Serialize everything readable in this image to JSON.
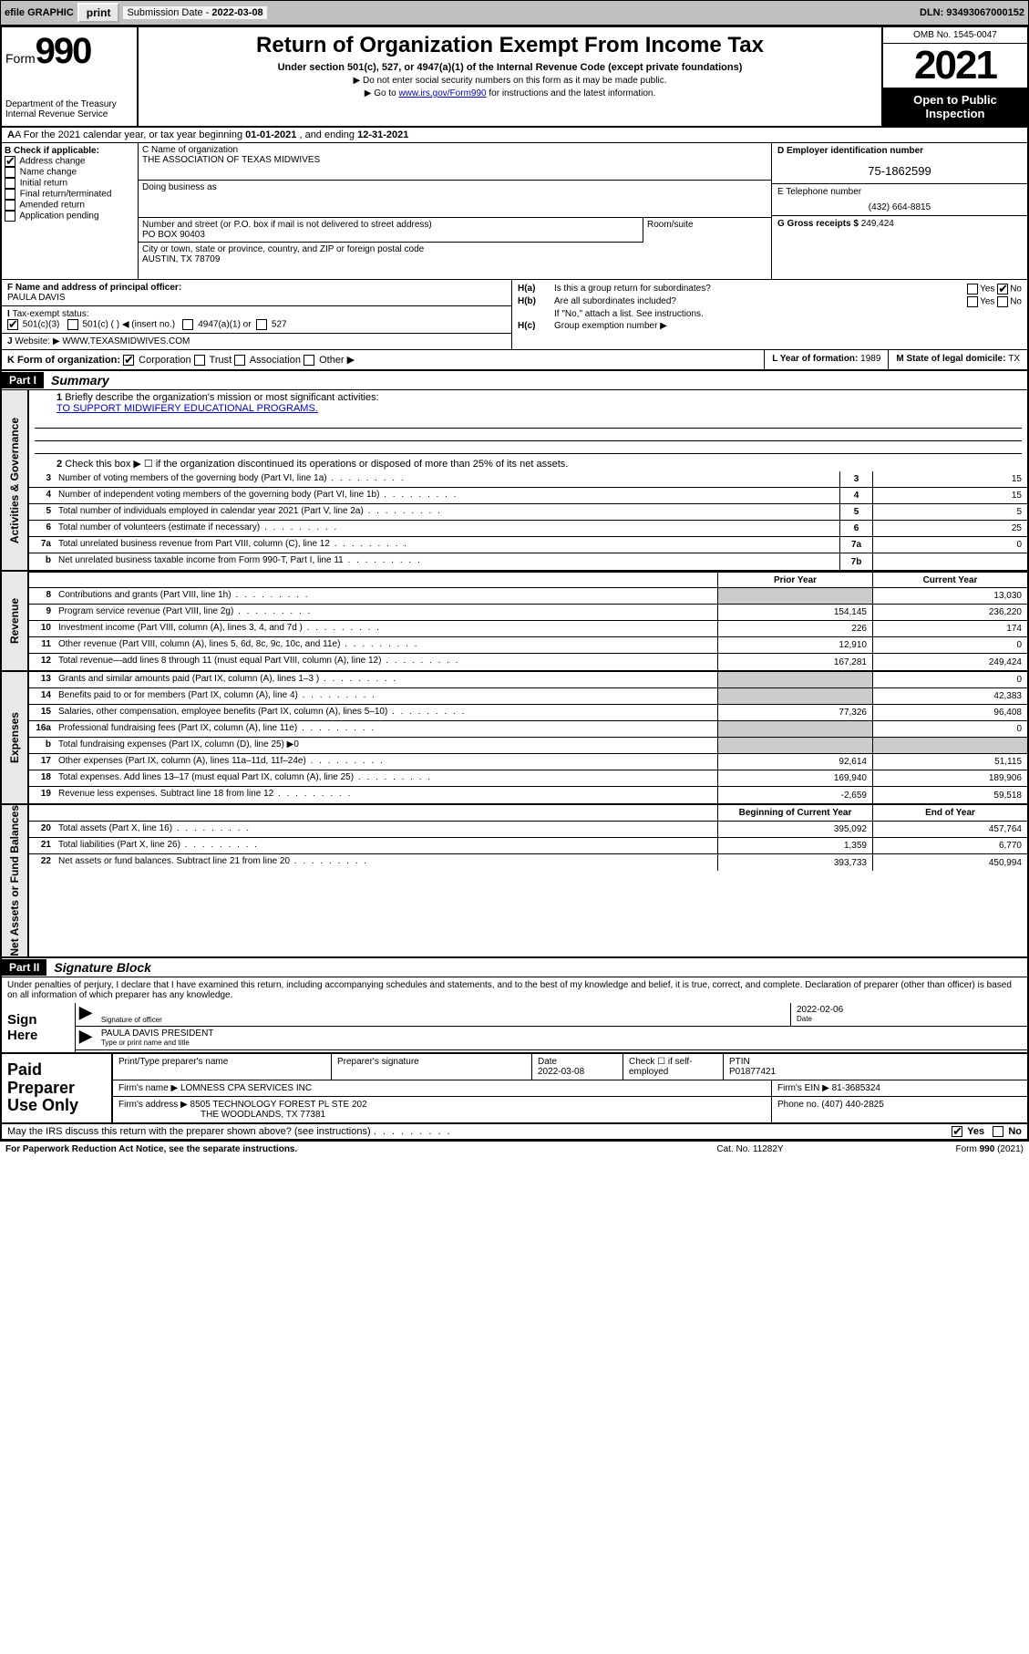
{
  "topbar": {
    "efile": "efile GRAPHIC",
    "print": "print",
    "sub_label": "Submission Date - ",
    "sub_date": "2022-03-08",
    "dln": "DLN: 93493067000152"
  },
  "header": {
    "form_word": "Form",
    "form_num": "990",
    "dept": "Department of the Treasury",
    "irs": "Internal Revenue Service",
    "title": "Return of Organization Exempt From Income Tax",
    "subtitle": "Under section 501(c), 527, or 4947(a)(1) of the Internal Revenue Code (except private foundations)",
    "note1": "▶ Do not enter social security numbers on this form as it may be made public.",
    "note2_a": "▶ Go to ",
    "note2_link": "www.irs.gov/Form990",
    "note2_b": " for instructions and the latest information.",
    "omb": "OMB No. 1545-0047",
    "year": "2021",
    "opento": "Open to Public Inspection"
  },
  "rowA": {
    "prefix": "A For the 2021 calendar year, or tax year beginning ",
    "begin": "01-01-2021",
    "mid": " , and ending ",
    "end": "12-31-2021"
  },
  "colB": {
    "label": "B Check if applicable:",
    "items": [
      "Address change",
      "Name change",
      "Initial return",
      "Final return/terminated",
      "Amended return",
      "Application pending"
    ],
    "checked": [
      true,
      false,
      false,
      false,
      false,
      false
    ]
  },
  "colC": {
    "name_lbl": "C Name of organization",
    "name": "THE ASSOCIATION OF TEXAS MIDWIVES",
    "dba_lbl": "Doing business as",
    "dba": "",
    "street_lbl": "Number and street (or P.O. box if mail is not delivered to street address)",
    "street": "PO BOX 90403",
    "suite_lbl": "Room/suite",
    "city_lbl": "City or town, state or province, country, and ZIP or foreign postal code",
    "city": "AUSTIN, TX  78709"
  },
  "colDE": {
    "d_lbl": "D Employer identification number",
    "ein": "75-1862599",
    "e_lbl": "E Telephone number",
    "phone": "(432) 664-8815",
    "g_lbl": "G Gross receipts $ ",
    "gross": "249,424"
  },
  "rowF": {
    "f_lbl": "F Name and address of principal officer:",
    "f_name": "PAULA DAVIS",
    "tax_lbl": "Tax-exempt status:",
    "opt1": "501(c)(3)",
    "opt2": "501(c) (  ) ◀ (insert no.)",
    "opt3": "4947(a)(1) or",
    "opt4": "527",
    "j_lbl": "Website: ▶ ",
    "j_site": "WWW.TEXASMIDWIVES.COM"
  },
  "rowH": {
    "ha_lbl": "H(a)",
    "ha_text": "Is this a group return for subordinates?",
    "ha_yes": "Yes",
    "ha_no_checked": true,
    "hb_lbl": "H(b)",
    "hb_text": "Are all subordinates included?",
    "hb_note": "If \"No,\" attach a list. See instructions.",
    "hc_lbl": "H(c)",
    "hc_text": "Group exemption number ▶"
  },
  "rowK": {
    "k_lbl": "K Form of organization:",
    "opts": [
      "Corporation",
      "Trust",
      "Association",
      "Other ▶"
    ],
    "checked": 0,
    "l_lbl": "L Year of formation: ",
    "l_val": "1989",
    "m_lbl": "M State of legal domicile: ",
    "m_val": "TX"
  },
  "part1": {
    "bar": "Part I",
    "title": "Summary",
    "q1_lbl": "1",
    "q1": "Briefly describe the organization's mission or most significant activities:",
    "q1_ans": "TO SUPPORT MIDWIFERY EDUCATIONAL PROGRAMS.",
    "q2": "Check this box ▶ ☐  if the organization discontinued its operations or disposed of more than 25% of its net assets."
  },
  "sections": {
    "activities": {
      "label": "Activities & Governance",
      "rows": [
        {
          "ln": "3",
          "desc": "Number of voting members of the governing body (Part VI, line 1a)",
          "box": "3",
          "val": "15"
        },
        {
          "ln": "4",
          "desc": "Number of independent voting members of the governing body (Part VI, line 1b)",
          "box": "4",
          "val": "15"
        },
        {
          "ln": "5",
          "desc": "Total number of individuals employed in calendar year 2021 (Part V, line 2a)",
          "box": "5",
          "val": "5"
        },
        {
          "ln": "6",
          "desc": "Total number of volunteers (estimate if necessary)",
          "box": "6",
          "val": "25"
        },
        {
          "ln": "7a",
          "desc": "Total unrelated business revenue from Part VIII, column (C), line 12",
          "box": "7a",
          "val": "0"
        },
        {
          "ln": "b",
          "desc": "Net unrelated business taxable income from Form 990-T, Part I, line 11",
          "box": "7b",
          "val": ""
        }
      ]
    },
    "revenue": {
      "label": "Revenue",
      "header": {
        "prior": "Prior Year",
        "curr": "Current Year"
      },
      "rows": [
        {
          "ln": "8",
          "desc": "Contributions and grants (Part VIII, line 1h)",
          "prior": "",
          "curr": "13,030",
          "shade": true
        },
        {
          "ln": "9",
          "desc": "Program service revenue (Part VIII, line 2g)",
          "prior": "154,145",
          "curr": "236,220"
        },
        {
          "ln": "10",
          "desc": "Investment income (Part VIII, column (A), lines 3, 4, and 7d )",
          "prior": "226",
          "curr": "174"
        },
        {
          "ln": "11",
          "desc": "Other revenue (Part VIII, column (A), lines 5, 6d, 8c, 9c, 10c, and 11e)",
          "prior": "12,910",
          "curr": "0"
        },
        {
          "ln": "12",
          "desc": "Total revenue—add lines 8 through 11 (must equal Part VIII, column (A), line 12)",
          "prior": "167,281",
          "curr": "249,424"
        }
      ]
    },
    "expenses": {
      "label": "Expenses",
      "rows": [
        {
          "ln": "13",
          "desc": "Grants and similar amounts paid (Part IX, column (A), lines 1–3 )",
          "prior": "",
          "curr": "0",
          "shade": true
        },
        {
          "ln": "14",
          "desc": "Benefits paid to or for members (Part IX, column (A), line 4)",
          "prior": "",
          "curr": "42,383",
          "shade": true
        },
        {
          "ln": "15",
          "desc": "Salaries, other compensation, employee benefits (Part IX, column (A), lines 5–10)",
          "prior": "77,326",
          "curr": "96,408"
        },
        {
          "ln": "16a",
          "desc": "Professional fundraising fees (Part IX, column (A), line 11e)",
          "prior": "",
          "curr": "0",
          "shade": true
        },
        {
          "ln": "b",
          "desc": "Total fundraising expenses (Part IX, column (D), line 25) ▶0",
          "noval": true
        },
        {
          "ln": "17",
          "desc": "Other expenses (Part IX, column (A), lines 11a–11d, 11f–24e)",
          "prior": "92,614",
          "curr": "51,115"
        },
        {
          "ln": "18",
          "desc": "Total expenses. Add lines 13–17 (must equal Part IX, column (A), line 25)",
          "prior": "169,940",
          "curr": "189,906"
        },
        {
          "ln": "19",
          "desc": "Revenue less expenses. Subtract line 18 from line 12",
          "prior": "-2,659",
          "curr": "59,518"
        }
      ]
    },
    "netassets": {
      "label": "Net Assets or Fund Balances",
      "header": {
        "prior": "Beginning of Current Year",
        "curr": "End of Year"
      },
      "rows": [
        {
          "ln": "20",
          "desc": "Total assets (Part X, line 16)",
          "prior": "395,092",
          "curr": "457,764"
        },
        {
          "ln": "21",
          "desc": "Total liabilities (Part X, line 26)",
          "prior": "1,359",
          "curr": "6,770"
        },
        {
          "ln": "22",
          "desc": "Net assets or fund balances. Subtract line 21 from line 20",
          "prior": "393,733",
          "curr": "450,994"
        }
      ]
    }
  },
  "part2": {
    "bar": "Part II",
    "title": "Signature Block",
    "declaration": "Under penalties of perjury, I declare that I have examined this return, including accompanying schedules and statements, and to the best of my knowledge and belief, it is true, correct, and complete. Declaration of preparer (other than officer) is based on all information of which preparer has any knowledge."
  },
  "sign": {
    "label": "Sign Here",
    "sig_lbl": "Signature of officer",
    "date_lbl": "Date",
    "date_val": "2022-02-06",
    "name": "PAULA DAVIS PRESIDENT",
    "name_lbl": "Type or print name and title"
  },
  "prep": {
    "label": "Paid Preparer Use Only",
    "col1": "Print/Type preparer's name",
    "col2": "Preparer's signature",
    "col3": "Date",
    "col3v": "2022-03-08",
    "col4": "Check ☐ if self-employed",
    "col5": "PTIN",
    "col5v": "P01877421",
    "firm_lbl": "Firm's name    ▶ ",
    "firm": "LOMNESS CPA SERVICES INC",
    "ein_lbl": "Firm's EIN ▶ ",
    "ein": "81-3685324",
    "addr_lbl": "Firm's address ▶ ",
    "addr1": "8505 TECHNOLOGY FOREST PL STE 202",
    "addr2": "THE WOODLANDS, TX  77381",
    "ph_lbl": "Phone no. ",
    "ph": "(407) 440-2825"
  },
  "footer": {
    "discuss": "May the IRS discuss this return with the preparer shown above? (see instructions)",
    "yes": "Yes",
    "no": "No",
    "paperwork": "For Paperwork Reduction Act Notice, see the separate instructions.",
    "cat": "Cat. No. 11282Y",
    "form": "Form 990 (2021)"
  }
}
